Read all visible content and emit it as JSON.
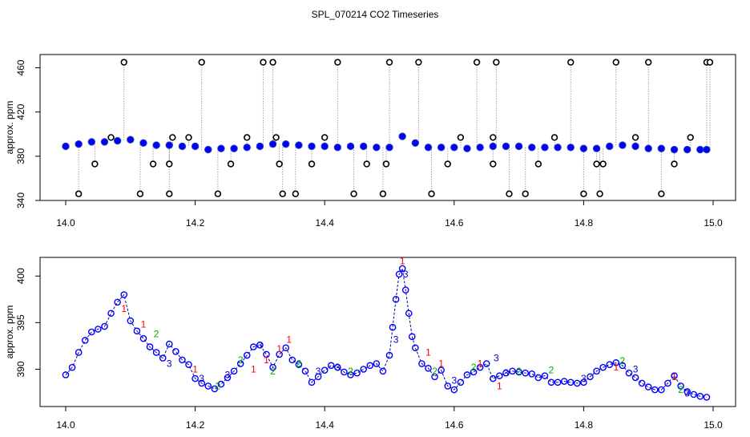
{
  "page": {
    "title": "SPL_070214  CO2 Timeseries"
  },
  "chart_data": [
    {
      "type": "scatter",
      "title": "SPL_070214  CO2 Timeseries",
      "xlabel": "",
      "ylabel": "approx. ppm",
      "xlim": [
        14.0,
        15.0
      ],
      "ylim": [
        340,
        472
      ],
      "x_ticks": [
        "14.0",
        "14.2",
        "14.4",
        "14.6",
        "14.8",
        "15.0"
      ],
      "y_ticks": [
        "340",
        "380",
        "420",
        "460"
      ],
      "series": [
        {
          "marker": "circle",
          "color": "#0000ff",
          "x": [
            14.0,
            14.02,
            14.04,
            14.06,
            14.08,
            14.1,
            14.12,
            14.14,
            14.16,
            14.18,
            14.2,
            14.22,
            14.24,
            14.26,
            14.28,
            14.3,
            14.32,
            14.34,
            14.36,
            14.38,
            14.4,
            14.42,
            14.44,
            14.46,
            14.48,
            14.5,
            14.52,
            14.54,
            14.56,
            14.58,
            14.6,
            14.62,
            14.64,
            14.66,
            14.68,
            14.7,
            14.72,
            14.74,
            14.76,
            14.78,
            14.8,
            14.82,
            14.84,
            14.86,
            14.88,
            14.9,
            14.92,
            14.94,
            14.96,
            14.98,
            14.99
          ],
          "y": [
            389,
            391,
            393,
            393,
            394,
            395,
            392,
            390,
            390,
            389,
            389,
            386,
            387,
            387,
            388,
            389,
            391,
            391,
            390,
            389,
            389,
            388,
            389,
            389,
            388,
            388,
            398,
            392,
            388,
            388,
            388,
            387,
            388,
            389,
            389,
            389,
            388,
            388,
            388,
            388,
            387,
            387,
            389,
            390,
            389,
            387,
            387,
            386,
            386,
            386,
            386
          ]
        },
        {
          "name": "",
          "marker": "circle-outline",
          "color": "#000000",
          "x": [
            14.02,
            14.045,
            14.07,
            14.09,
            14.115,
            14.135,
            14.16,
            14.16,
            14.165,
            14.19,
            14.21,
            14.235,
            14.255,
            14.28,
            14.305,
            14.32,
            14.325,
            14.33,
            14.335,
            14.355,
            14.38,
            14.4,
            14.42,
            14.445,
            14.465,
            14.49,
            14.495,
            14.5,
            14.545,
            14.565,
            14.59,
            14.61,
            14.635,
            14.66,
            14.66,
            14.665,
            14.685,
            14.71,
            14.73,
            14.755,
            14.78,
            14.8,
            14.82,
            14.825,
            14.83,
            14.85,
            14.88,
            14.9,
            14.92,
            14.94,
            14.965,
            14.99,
            14.995
          ],
          "y": [
            346,
            373,
            397,
            465,
            346,
            373,
            346,
            373,
            397,
            397,
            465,
            346,
            373,
            397,
            465,
            465,
            397,
            373,
            346,
            346,
            373,
            397,
            465,
            346,
            373,
            346,
            373,
            465,
            465,
            346,
            373,
            397,
            465,
            373,
            397,
            465,
            346,
            346,
            373,
            397,
            465,
            346,
            373,
            346,
            373,
            465,
            397,
            465,
            346,
            373,
            397,
            465,
            465
          ]
        }
      ]
    },
    {
      "type": "scatter",
      "title": "",
      "xlabel": "",
      "ylabel": "approx. ppm",
      "xlim": [
        14.0,
        15.0
      ],
      "ylim": [
        386,
        402
      ],
      "x_ticks": [
        "14.0",
        "14.2",
        "14.4",
        "14.6",
        "14.8",
        "15.0"
      ],
      "y_ticks": [
        "390",
        "395",
        "400"
      ],
      "series": [
        {
          "marker": "circle-outline",
          "color": "#0000ff",
          "x": [
            14.0,
            14.01,
            14.02,
            14.03,
            14.04,
            14.05,
            14.06,
            14.07,
            14.08,
            14.09,
            14.1,
            14.11,
            14.12,
            14.13,
            14.14,
            14.15,
            14.16,
            14.17,
            14.18,
            14.19,
            14.2,
            14.21,
            14.22,
            14.23,
            14.24,
            14.25,
            14.26,
            14.27,
            14.28,
            14.29,
            14.3,
            14.31,
            14.32,
            14.33,
            14.34,
            14.35,
            14.36,
            14.37,
            14.38,
            14.39,
            14.4,
            14.41,
            14.42,
            14.43,
            14.44,
            14.45,
            14.46,
            14.47,
            14.48,
            14.49,
            14.5,
            14.505,
            14.51,
            14.515,
            14.52,
            14.525,
            14.53,
            14.535,
            14.54,
            14.55,
            14.56,
            14.57,
            14.58,
            14.59,
            14.6,
            14.61,
            14.62,
            14.63,
            14.64,
            14.65,
            14.66,
            14.67,
            14.68,
            14.69,
            14.7,
            14.71,
            14.72,
            14.73,
            14.74,
            14.75,
            14.76,
            14.77,
            14.78,
            14.79,
            14.8,
            14.81,
            14.82,
            14.83,
            14.84,
            14.85,
            14.86,
            14.87,
            14.88,
            14.89,
            14.9,
            14.91,
            14.92,
            14.93,
            14.94,
            14.95,
            14.96,
            14.97,
            14.98,
            14.99
          ],
          "y": [
            389.4,
            390.2,
            391.8,
            393.1,
            394.0,
            394.3,
            394.6,
            396.0,
            397.2,
            398.0,
            395.2,
            394.1,
            393.3,
            392.4,
            391.8,
            391.2,
            392.7,
            391.9,
            391.0,
            390.5,
            389.0,
            388.5,
            388.2,
            387.9,
            388.4,
            389.1,
            389.8,
            390.6,
            391.5,
            392.4,
            392.6,
            391.6,
            390.2,
            391.6,
            392.3,
            391.0,
            390.5,
            389.8,
            388.6,
            389.2,
            389.9,
            390.4,
            390.2,
            389.7,
            389.4,
            389.6,
            390.0,
            390.4,
            390.6,
            389.8,
            391.5,
            394.5,
            397.5,
            400.2,
            400.8,
            398.5,
            396.0,
            393.5,
            392.3,
            390.6,
            390.1,
            389.2,
            389.9,
            388.2,
            387.8,
            388.6,
            389.4,
            389.7,
            390.2,
            390.6,
            389.0,
            389.3,
            389.6,
            389.8,
            389.7,
            389.6,
            389.5,
            389.1,
            389.3,
            388.6,
            388.6,
            388.7,
            388.6,
            388.5,
            388.6,
            389.2,
            389.8,
            390.2,
            390.5,
            390.7,
            390.4,
            389.6,
            389.1,
            388.5,
            388.1,
            387.8,
            387.8,
            388.5,
            389.3,
            388.2,
            387.6,
            387.3,
            387.1,
            387.0
          ]
        },
        {
          "marker": "digit",
          "symbols": [
            "1",
            "2",
            "3"
          ],
          "colors": [
            "#ff0000",
            "#00aa00",
            "#0000cc"
          ],
          "x": [
            14.09,
            14.12,
            14.14,
            14.16,
            14.2,
            14.21,
            14.235,
            14.25,
            14.27,
            14.29,
            14.3,
            14.31,
            14.32,
            14.33,
            14.345,
            14.36,
            14.39,
            14.42,
            14.44,
            14.51,
            14.52,
            14.525,
            14.56,
            14.57,
            14.58,
            14.6,
            14.63,
            14.64,
            14.665,
            14.67,
            14.68,
            14.7,
            14.75,
            14.8,
            14.85,
            14.86,
            14.88,
            14.94,
            14.95,
            14.96
          ],
          "y": [
            396.5,
            394.8,
            393.8,
            390.6,
            390.0,
            389.0,
            388.2,
            389.4,
            391.0,
            390.0,
            392.6,
            391.0,
            389.8,
            392.2,
            393.2,
            390.6,
            389.8,
            390.2,
            389.8,
            393.2,
            401.6,
            400.2,
            391.8,
            389.8,
            390.6,
            388.8,
            390.2,
            390.6,
            391.2,
            388.2,
            389.6,
            389.8,
            389.9,
            389.0,
            390.2,
            390.9,
            390.0,
            389.2,
            387.8,
            387.4
          ],
          "digits": [
            "1",
            "1",
            "2",
            "3",
            "1",
            "3",
            "2",
            "3",
            "2",
            "1",
            "3",
            "1",
            "2",
            "1",
            "1",
            "2",
            "3",
            "3",
            "2",
            "3",
            "1",
            "3",
            "1",
            "2",
            "1",
            "3",
            "2",
            "1",
            "3",
            "1",
            "3",
            "2",
            "2",
            "3",
            "1",
            "2",
            "3",
            "1",
            "2",
            "3"
          ]
        }
      ]
    }
  ]
}
